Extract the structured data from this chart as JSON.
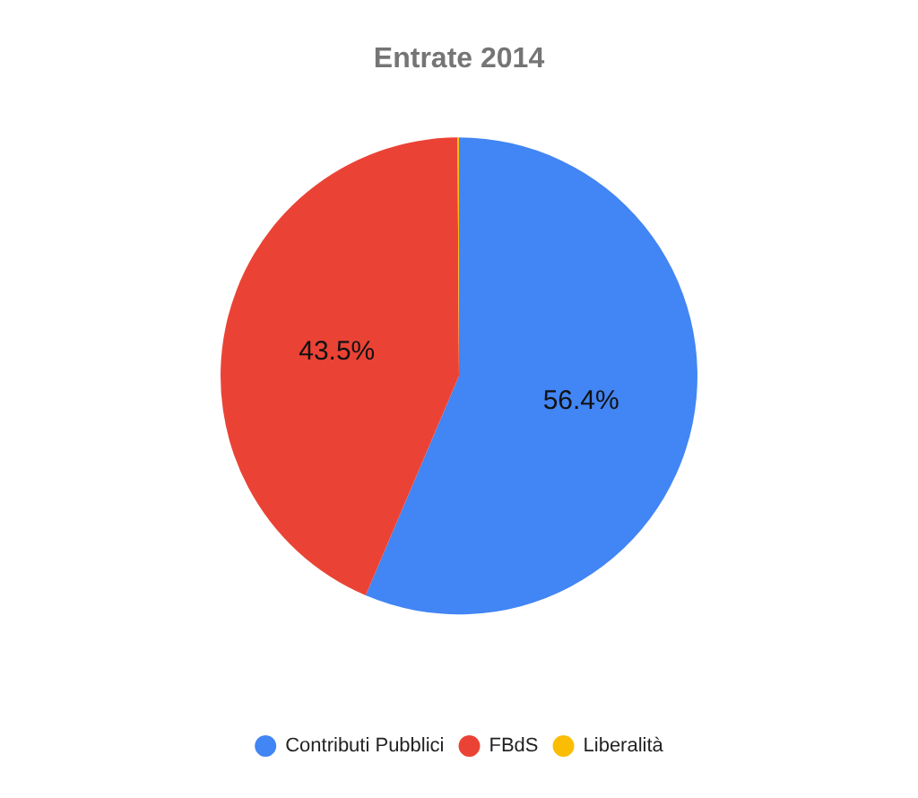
{
  "chart_data": {
    "type": "pie",
    "title": "Entrate 2014",
    "categories": [
      "Contributi Pubblici",
      "FBdS",
      "Liberalità"
    ],
    "values": [
      56.4,
      43.5,
      0.1
    ],
    "colors": [
      "#4285f4",
      "#ea4335",
      "#fbbc04"
    ],
    "value_labels": [
      "56.4%",
      "43.5%",
      null
    ],
    "legend": "bottom"
  }
}
